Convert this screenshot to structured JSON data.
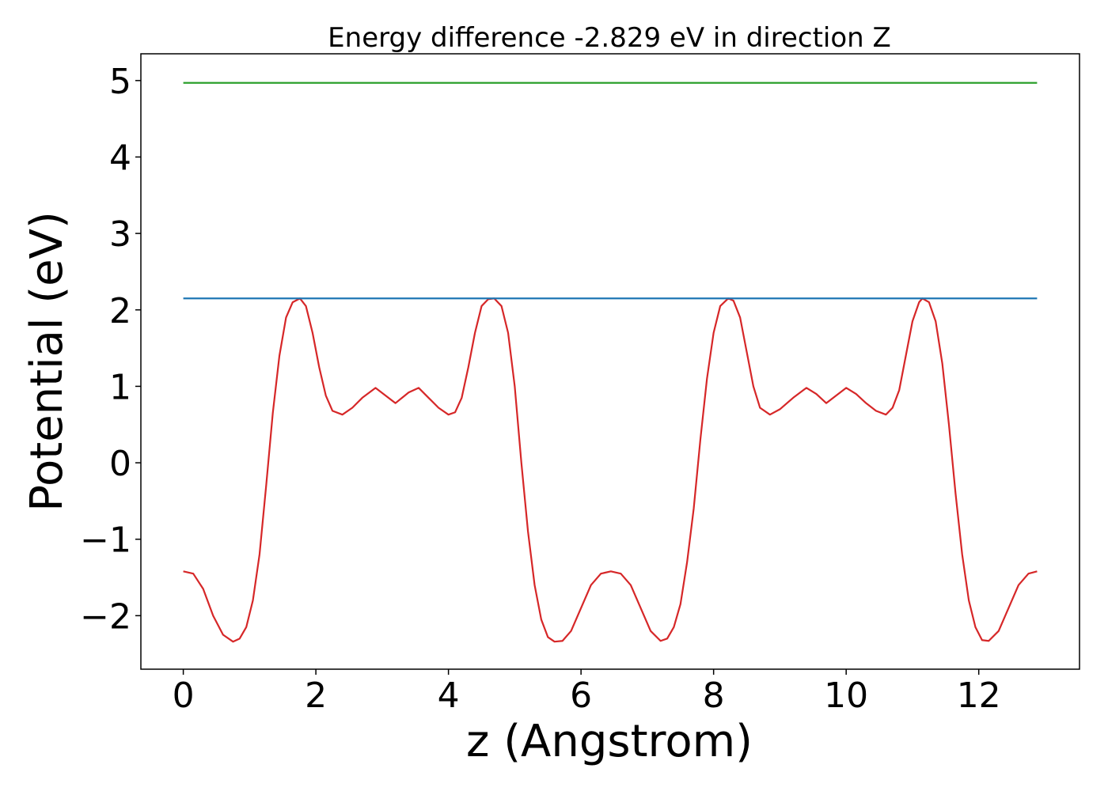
{
  "chart_data": {
    "type": "line",
    "title": "Energy difference -2.829 eV in direction Z",
    "xlabel": "z (Angstrom)",
    "ylabel": "Potential (eV)",
    "xlim": [
      -0.64,
      13.52
    ],
    "ylim": [
      -2.7,
      5.35
    ],
    "xticks": [
      0,
      2,
      4,
      6,
      8,
      10,
      12
    ],
    "yticks": [
      -2,
      -1,
      0,
      1,
      2,
      3,
      4,
      5
    ],
    "grid": false,
    "series": [
      {
        "color": "#d62728",
        "x": [
          0.0,
          0.15,
          0.3,
          0.45,
          0.6,
          0.75,
          0.85,
          0.95,
          1.05,
          1.15,
          1.25,
          1.35,
          1.45,
          1.55,
          1.65,
          1.76,
          1.85,
          1.95,
          2.05,
          2.15,
          2.25,
          2.4,
          2.55,
          2.7,
          2.9,
          3.05,
          3.2,
          3.4,
          3.55,
          3.7,
          3.85,
          4.0,
          4.1,
          4.2,
          4.3,
          4.4,
          4.5,
          4.6,
          4.69,
          4.8,
          4.9,
          5.0,
          5.1,
          5.2,
          5.3,
          5.4,
          5.5,
          5.6,
          5.72,
          5.85,
          6.0,
          6.15,
          6.3,
          6.45,
          6.6,
          6.75,
          6.9,
          7.05,
          7.2,
          7.3,
          7.4,
          7.5,
          7.6,
          7.7,
          7.8,
          7.9,
          8.0,
          8.1,
          8.22,
          8.3,
          8.4,
          8.5,
          8.6,
          8.7,
          8.85,
          9.0,
          9.2,
          9.4,
          9.55,
          9.7,
          9.85,
          10.0,
          10.15,
          10.3,
          10.45,
          10.6,
          10.7,
          10.8,
          10.9,
          11.0,
          11.1,
          11.15,
          11.25,
          11.35,
          11.45,
          11.55,
          11.65,
          11.75,
          11.85,
          11.95,
          12.05,
          12.15,
          12.3,
          12.45,
          12.6,
          12.75,
          12.88
        ],
        "y": [
          -1.42,
          -1.45,
          -1.65,
          -2.0,
          -2.25,
          -2.34,
          -2.3,
          -2.15,
          -1.8,
          -1.2,
          -0.3,
          0.65,
          1.4,
          1.9,
          2.1,
          2.15,
          2.05,
          1.7,
          1.25,
          0.88,
          0.68,
          0.63,
          0.72,
          0.85,
          0.98,
          0.88,
          0.78,
          0.92,
          0.98,
          0.85,
          0.72,
          0.63,
          0.66,
          0.85,
          1.25,
          1.7,
          2.05,
          2.14,
          2.15,
          2.05,
          1.7,
          1.0,
          0.0,
          -0.9,
          -1.6,
          -2.05,
          -2.28,
          -2.34,
          -2.33,
          -2.2,
          -1.9,
          -1.6,
          -1.45,
          -1.42,
          -1.45,
          -1.6,
          -1.9,
          -2.2,
          -2.33,
          -2.3,
          -2.15,
          -1.85,
          -1.3,
          -0.6,
          0.3,
          1.1,
          1.7,
          2.05,
          2.15,
          2.12,
          1.9,
          1.45,
          1.0,
          0.72,
          0.63,
          0.7,
          0.85,
          0.98,
          0.9,
          0.78,
          0.88,
          0.98,
          0.9,
          0.78,
          0.68,
          0.63,
          0.72,
          0.95,
          1.4,
          1.85,
          2.1,
          2.15,
          2.1,
          1.85,
          1.3,
          0.5,
          -0.4,
          -1.2,
          -1.8,
          -2.15,
          -2.32,
          -2.33,
          -2.2,
          -1.9,
          -1.6,
          -1.45,
          -1.42
        ]
      },
      {
        "color": "#1f77b4",
        "x": [
          0.0,
          12.88
        ],
        "y": [
          2.15,
          2.15
        ]
      },
      {
        "color": "#2ca02c",
        "x": [
          0.0,
          12.88
        ],
        "y": [
          4.97,
          4.97
        ]
      }
    ]
  }
}
